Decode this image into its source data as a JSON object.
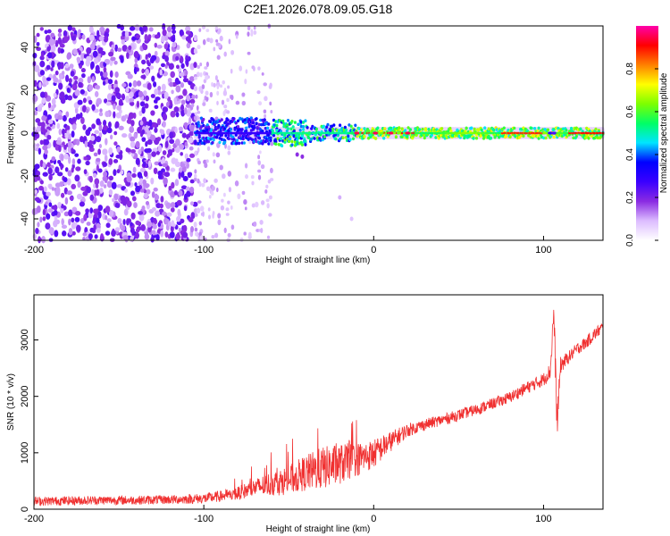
{
  "title": "C2E1.2026.078.09.05.G18",
  "chart_data": [
    {
      "type": "heatmap",
      "title": "C2E1.2026.078.09.05.G18",
      "xlabel": "Height of straight line (km)",
      "ylabel": "Frequency (Hz)",
      "xlim": [
        -200,
        135
      ],
      "ylim": [
        -50,
        50
      ],
      "x_ticks": [
        -200,
        -100,
        0,
        100
      ],
      "x_tick_labels": [
        "-200",
        "-100",
        "0",
        "100"
      ],
      "y_ticks": [
        -40,
        -20,
        0,
        20,
        40
      ],
      "y_tick_labels": [
        "-40",
        "-20",
        "0",
        "20",
        "40"
      ],
      "colorbar": {
        "label": "Normalized spectral amplitude",
        "range": [
          0,
          1
        ],
        "ticks": [
          0,
          0.2,
          0.4,
          0.6,
          0.8
        ],
        "tick_labels": [
          "0.0",
          "0.2",
          "0.4",
          "0.6",
          "0.8"
        ],
        "colors": [
          "#ffffff",
          "#dcbcff",
          "#8a2be2",
          "#3a00ff",
          "#0000ff",
          "#00e5ff",
          "#00ff66",
          "#7cff00",
          "#ffff00",
          "#ff8000",
          "#ff0000",
          "#ff00aa"
        ]
      },
      "features": {
        "noise_region_x": [
          -200,
          -105
        ],
        "sparse_noise_x": [
          -105,
          -60
        ],
        "carrier_start_x": -105,
        "carrier_frequency": 0,
        "carrier_halfwidth": 3
      }
    },
    {
      "type": "line",
      "xlabel": "Height of straight line (km)",
      "ylabel": "SNR (10 * v/v)",
      "xlim": [
        -200,
        135
      ],
      "ylim": [
        0,
        3800
      ],
      "x_ticks": [
        -200,
        -100,
        0,
        100
      ],
      "x_tick_labels": [
        "-200",
        "-100",
        "0",
        "100"
      ],
      "y_ticks": [
        0,
        1000,
        2000,
        3000
      ],
      "y_tick_labels": [
        "0",
        "1000",
        "2000",
        "3000"
      ],
      "series": [
        {
          "name": "SNR",
          "color": "#f03030",
          "x": [
            -200,
            -180,
            -160,
            -140,
            -120,
            -100,
            -90,
            -80,
            -70,
            -60,
            -50,
            -40,
            -30,
            -20,
            -10,
            0,
            10,
            20,
            30,
            40,
            50,
            60,
            70,
            80,
            90,
            100,
            104,
            106,
            108,
            110,
            115,
            120,
            125,
            130,
            135
          ],
          "y": [
            140,
            150,
            160,
            160,
            170,
            190,
            230,
            280,
            380,
            450,
            520,
            640,
            730,
            800,
            880,
            980,
            1200,
            1400,
            1500,
            1580,
            1670,
            1760,
            1870,
            1980,
            2150,
            2300,
            2450,
            3500,
            1500,
            2550,
            2700,
            2850,
            2950,
            3100,
            3230
          ],
          "noise": [
            80,
            80,
            80,
            80,
            80,
            90,
            100,
            120,
            160,
            220,
            260,
            320,
            380,
            360,
            300,
            260,
            180,
            120,
            100,
            100,
            100,
            100,
            100,
            100,
            110,
            120,
            150,
            300,
            300,
            150,
            110,
            110,
            110,
            110,
            110
          ]
        }
      ]
    }
  ]
}
